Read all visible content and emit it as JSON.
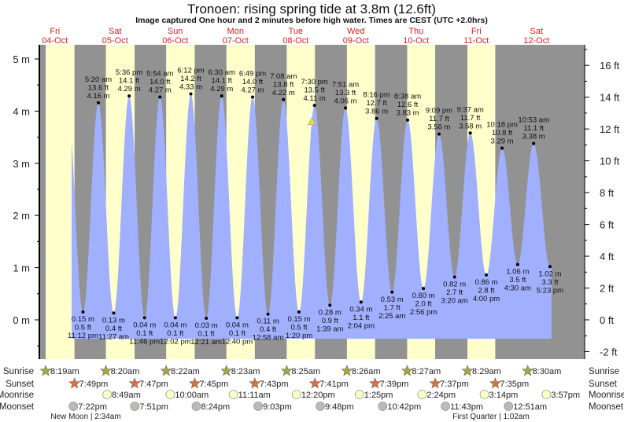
{
  "title": "Tronoen: rising  spring tide at 3.8m (12.6ft)",
  "subtitle": "Image captured One hour and 2 minutes before high water. Times are CEST (UTC +2.0hrs)",
  "colors": {
    "day": "#ffffcc",
    "night": "#929292",
    "water": "#a0b0ff",
    "day_label": "#e02020",
    "marker": "#e6e040"
  },
  "chart_data": {
    "type": "area",
    "title": "Tronoen: rising  spring tide at 3.8m (12.6ft)",
    "left_axis": {
      "unit": "m",
      "range": [
        -0.6,
        5.3
      ],
      "ticks": [
        "0 m",
        "1 m",
        "2 m",
        "3 m",
        "4 m",
        "5 m"
      ]
    },
    "right_axis": {
      "unit": "ft",
      "ticks": [
        "-2 ft",
        "0 ft",
        "2 ft",
        "4 ft",
        "6 ft",
        "8 ft",
        "10 ft",
        "12 ft",
        "14 ft",
        "16 ft"
      ]
    },
    "days": [
      {
        "dow": "Fri",
        "date": "04-Oct"
      },
      {
        "dow": "Sat",
        "date": "05-Oct"
      },
      {
        "dow": "Sun",
        "date": "06-Oct"
      },
      {
        "dow": "Mon",
        "date": "07-Oct"
      },
      {
        "dow": "Tue",
        "date": "08-Oct"
      },
      {
        "dow": "Wed",
        "date": "09-Oct"
      },
      {
        "dow": "Thu",
        "date": "10-Oct"
      },
      {
        "dow": "Fri",
        "date": "11-Oct"
      },
      {
        "dow": "Sat",
        "date": "12-Oct"
      }
    ],
    "extremes": [
      {
        "type": "low",
        "date": "04-Oct",
        "time": "11:12 pm",
        "m": "0.15 m",
        "ft": "0.5 ft",
        "value": 0.15
      },
      {
        "type": "high",
        "date": "05-Oct",
        "time": "5:20 am",
        "m": "4.16 m",
        "ft": "13.6 ft",
        "value": 4.16
      },
      {
        "type": "low",
        "date": "05-Oct",
        "time": "11:27 am",
        "m": "0.13 m",
        "ft": "0.4 ft",
        "value": 0.13
      },
      {
        "type": "high",
        "date": "05-Oct",
        "time": "5:36 pm",
        "m": "4.29 m",
        "ft": "14.1 ft",
        "value": 4.29
      },
      {
        "type": "low",
        "date": "05-Oct",
        "time": "11:46 pm",
        "m": "0.04 m",
        "ft": "0.1 ft",
        "value": 0.04
      },
      {
        "type": "high",
        "date": "06-Oct",
        "time": "5:54 am",
        "m": "4.27 m",
        "ft": "14.0 ft",
        "value": 4.27
      },
      {
        "type": "low",
        "date": "06-Oct",
        "time": "12:02 pm",
        "m": "0.04 m",
        "ft": "0.1 ft",
        "value": 0.04
      },
      {
        "type": "high",
        "date": "06-Oct",
        "time": "6:12 pm",
        "m": "4.33 m",
        "ft": "14.2 ft",
        "value": 4.33
      },
      {
        "type": "low",
        "date": "07-Oct",
        "time": "12:21 am",
        "m": "0.03 m",
        "ft": "0.1 ft",
        "value": 0.03
      },
      {
        "type": "high",
        "date": "07-Oct",
        "time": "6:30 am",
        "m": "4.29 m",
        "ft": "14.1 ft",
        "value": 4.29
      },
      {
        "type": "low",
        "date": "07-Oct",
        "time": "12:40 pm",
        "m": "0.04 m",
        "ft": "0.1 ft",
        "value": 0.04
      },
      {
        "type": "high",
        "date": "07-Oct",
        "time": "6:49 pm",
        "m": "4.27 m",
        "ft": "14.0 ft",
        "value": 4.27
      },
      {
        "type": "low",
        "date": "08-Oct",
        "time": "12:58 am",
        "m": "0.11 m",
        "ft": "0.4 ft",
        "value": 0.11
      },
      {
        "type": "high",
        "date": "08-Oct",
        "time": "7:08 am",
        "m": "4.22 m",
        "ft": "13.8 ft",
        "value": 4.22
      },
      {
        "type": "low",
        "date": "08-Oct",
        "time": "1:20 pm",
        "m": "0.15 m",
        "ft": "0.5 ft",
        "value": 0.15
      },
      {
        "type": "high",
        "date": "08-Oct",
        "time": "7:30 pm",
        "m": "4.11 m",
        "ft": "13.5 ft",
        "value": 4.11
      },
      {
        "type": "low",
        "date": "09-Oct",
        "time": "1:39 am",
        "m": "0.28 m",
        "ft": "0.9 ft",
        "value": 0.28
      },
      {
        "type": "high",
        "date": "09-Oct",
        "time": "7:51 am",
        "m": "4.06 m",
        "ft": "13.3 ft",
        "value": 4.06
      },
      {
        "type": "low",
        "date": "09-Oct",
        "time": "2:04 pm",
        "m": "0.34 m",
        "ft": "1.1 ft",
        "value": 0.34
      },
      {
        "type": "high",
        "date": "09-Oct",
        "time": "8:16 pm",
        "m": "3.86 m",
        "ft": "12.7 ft",
        "value": 3.86
      },
      {
        "type": "low",
        "date": "10-Oct",
        "time": "2:25 am",
        "m": "0.53 m",
        "ft": "1.7 ft",
        "value": 0.53
      },
      {
        "type": "high",
        "date": "10-Oct",
        "time": "8:38 am",
        "m": "3.83 m",
        "ft": "12.6 ft",
        "value": 3.83
      },
      {
        "type": "low",
        "date": "10-Oct",
        "time": "2:56 pm",
        "m": "0.60 m",
        "ft": "2.0 ft",
        "value": 0.6
      },
      {
        "type": "high",
        "date": "10-Oct",
        "time": "9:09 pm",
        "m": "3.56 m",
        "ft": "11.7 ft",
        "value": 3.56
      },
      {
        "type": "low",
        "date": "11-Oct",
        "time": "3:20 am",
        "m": "0.82 m",
        "ft": "2.7 ft",
        "value": 0.82
      },
      {
        "type": "high",
        "date": "11-Oct",
        "time": "9:37 am",
        "m": "3.58 m",
        "ft": "11.7 ft",
        "value": 3.58
      },
      {
        "type": "low",
        "date": "11-Oct",
        "time": "4:00 pm",
        "m": "0.86 m",
        "ft": "2.8 ft",
        "value": 0.86
      },
      {
        "type": "high",
        "date": "11-Oct",
        "time": "10:18 pm",
        "m": "3.29 m",
        "ft": "10.8 ft",
        "value": 3.29
      },
      {
        "type": "low",
        "date": "12-Oct",
        "time": "4:30 am",
        "m": "1.06 m",
        "ft": "3.5 ft",
        "value": 1.06
      },
      {
        "type": "high",
        "date": "12-Oct",
        "time": "10:53 am",
        "m": "3.38 m",
        "ft": "11.1 ft",
        "value": 3.38
      },
      {
        "type": "low",
        "date": "12-Oct",
        "time": "5:23 pm",
        "m": "1.02 m",
        "ft": "3.3 ft",
        "value": 1.02
      }
    ],
    "current": {
      "date": "08-Oct",
      "time": "6:28 pm",
      "value": 3.8
    }
  },
  "rows": {
    "labels": {
      "sunrise": "Sunrise",
      "sunset": "Sunset",
      "moonrise": "Moonrise",
      "moonset": "Moonset"
    },
    "sunrise": [
      {
        "date": "04-Oct",
        "time": "8:19am"
      },
      {
        "date": "05-Oct",
        "time": "8:20am"
      },
      {
        "date": "06-Oct",
        "time": "8:22am"
      },
      {
        "date": "07-Oct",
        "time": "8:23am"
      },
      {
        "date": "08-Oct",
        "time": "8:25am"
      },
      {
        "date": "09-Oct",
        "time": "8:26am"
      },
      {
        "date": "10-Oct",
        "time": "8:27am"
      },
      {
        "date": "11-Oct",
        "time": "8:29am"
      },
      {
        "date": "12-Oct",
        "time": "8:30am"
      }
    ],
    "sunset": [
      {
        "date": "04-Oct",
        "time": "7:49pm"
      },
      {
        "date": "05-Oct",
        "time": "7:47pm"
      },
      {
        "date": "06-Oct",
        "time": "7:45pm"
      },
      {
        "date": "07-Oct",
        "time": "7:43pm"
      },
      {
        "date": "08-Oct",
        "time": "7:41pm"
      },
      {
        "date": "09-Oct",
        "time": "7:39pm"
      },
      {
        "date": "10-Oct",
        "time": "7:37pm"
      },
      {
        "date": "11-Oct",
        "time": "7:35pm"
      }
    ],
    "moonrise": [
      {
        "date": "05-Oct",
        "time": "8:49am"
      },
      {
        "date": "06-Oct",
        "time": "10:00am"
      },
      {
        "date": "07-Oct",
        "time": "11:11am"
      },
      {
        "date": "08-Oct",
        "time": "12:20pm"
      },
      {
        "date": "09-Oct",
        "time": "1:25pm"
      },
      {
        "date": "10-Oct",
        "time": "2:24pm"
      },
      {
        "date": "11-Oct",
        "time": "3:14pm"
      },
      {
        "date": "12-Oct",
        "time": "3:57pm"
      }
    ],
    "moonset": [
      {
        "date": "04-Oct",
        "time": "7:22pm"
      },
      {
        "date": "05-Oct",
        "time": "7:51pm"
      },
      {
        "date": "06-Oct",
        "time": "8:24pm"
      },
      {
        "date": "07-Oct",
        "time": "9:03pm"
      },
      {
        "date": "08-Oct",
        "time": "9:48pm"
      },
      {
        "date": "09-Oct",
        "time": "10:42pm"
      },
      {
        "date": "10-Oct",
        "time": "11:43pm"
      },
      {
        "date": "12-Oct",
        "time": "12:51am"
      }
    ],
    "phases": [
      {
        "date": "05-Oct",
        "label": "New Moon | 2:34am"
      },
      {
        "date": "11-Oct",
        "label": "First Quarter | 1:02am"
      }
    ]
  }
}
